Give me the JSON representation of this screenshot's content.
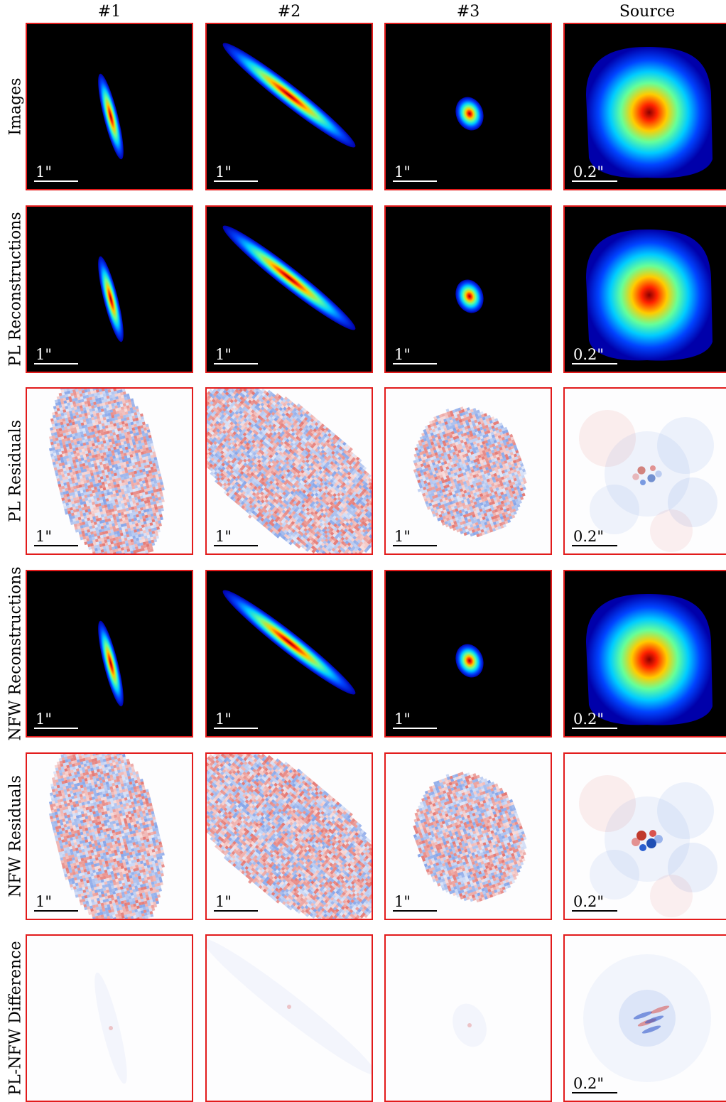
{
  "columns": [
    "#1",
    "#2",
    "#3",
    "Source"
  ],
  "rows": [
    {
      "label": "Images",
      "style": "image"
    },
    {
      "label": "PL Reconstructions",
      "style": "image"
    },
    {
      "label": "PL Residuals",
      "style": "residual"
    },
    {
      "label": "NFW Reconstructions",
      "style": "image"
    },
    {
      "label": "NFW Residuals",
      "style": "residual"
    },
    {
      "label": "PL-NFW Difference",
      "style": "difference"
    }
  ],
  "scale_bars": {
    "image": "1\"",
    "source": "0.2\""
  },
  "colors": {
    "panel_border": "#e21b1b",
    "image_background": "#000000",
    "residual_positive": "#d73027",
    "residual_negative": "#4575b4"
  }
}
